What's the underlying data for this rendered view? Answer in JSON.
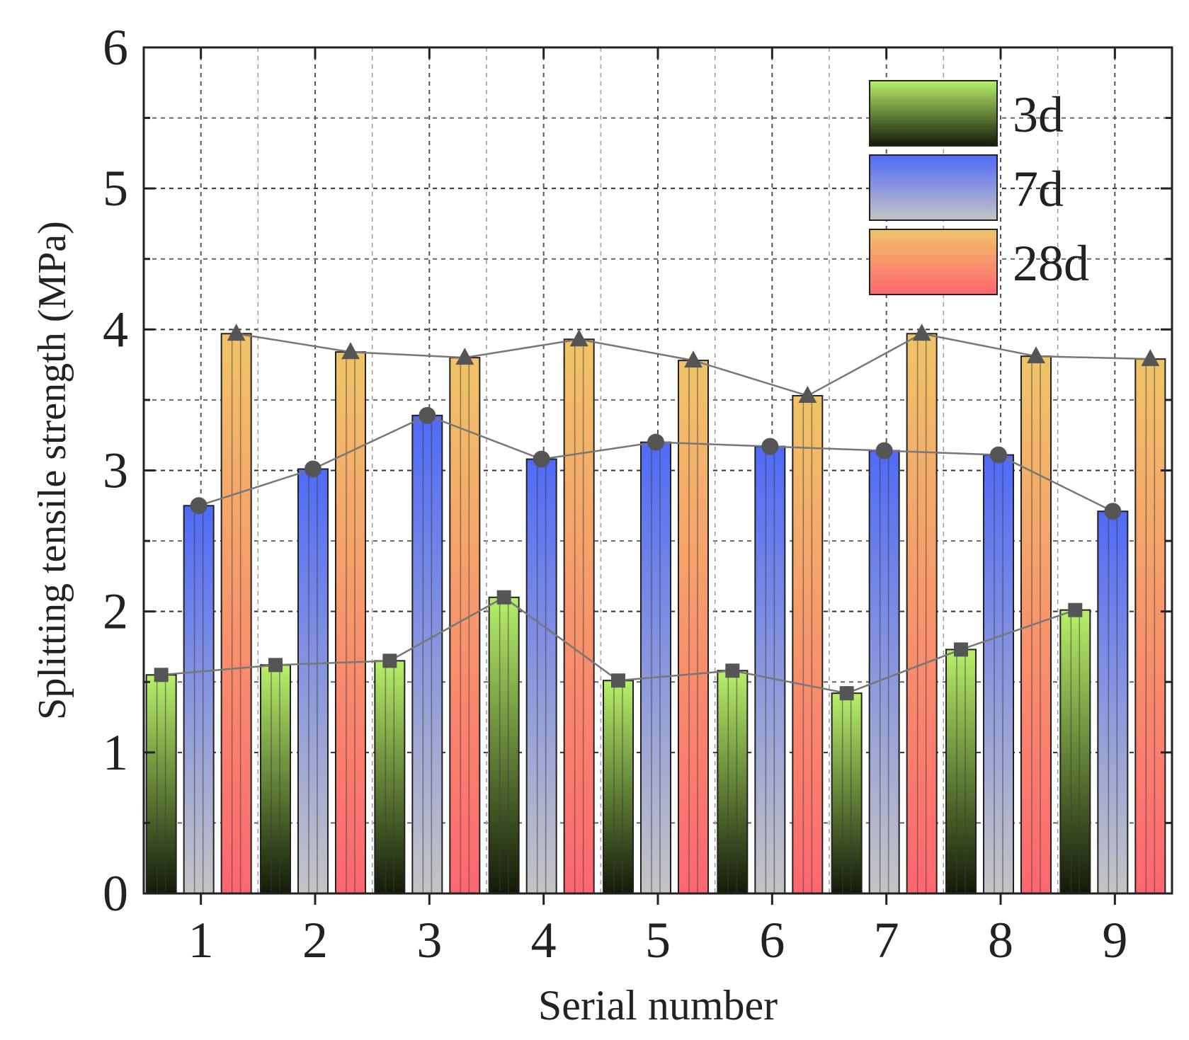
{
  "chart_data": {
    "type": "bar",
    "title": "",
    "xlabel": "Serial number",
    "ylabel": "Splitting tensile strength (MPa)",
    "categories": [
      "1",
      "2",
      "3",
      "4",
      "5",
      "6",
      "7",
      "8",
      "9"
    ],
    "ylim": [
      0,
      6
    ],
    "yticks": [
      "0",
      "1",
      "2",
      "3",
      "4",
      "5",
      "6"
    ],
    "grid": true,
    "legend_position": "top-right",
    "series": [
      {
        "name": "3d",
        "values": [
          1.55,
          1.62,
          1.65,
          2.1,
          1.51,
          1.58,
          1.42,
          1.73,
          2.01
        ],
        "gradient_top": "#b8f06a",
        "gradient_bottom": "#121a08",
        "marker": "square"
      },
      {
        "name": "7d",
        "values": [
          2.75,
          3.01,
          3.39,
          3.08,
          3.2,
          3.17,
          3.14,
          3.11,
          2.71
        ],
        "gradient_top": "#4f6af7",
        "gradient_bottom": "#c4c4c4",
        "marker": "circle"
      },
      {
        "name": "28d",
        "values": [
          3.97,
          3.84,
          3.8,
          3.93,
          3.78,
          3.53,
          3.97,
          3.81,
          3.79
        ],
        "gradient_top": "#f0c468",
        "gradient_bottom": "#ff6670",
        "marker": "triangle"
      }
    ],
    "line_color": "#777777",
    "marker_color": "#555555"
  }
}
